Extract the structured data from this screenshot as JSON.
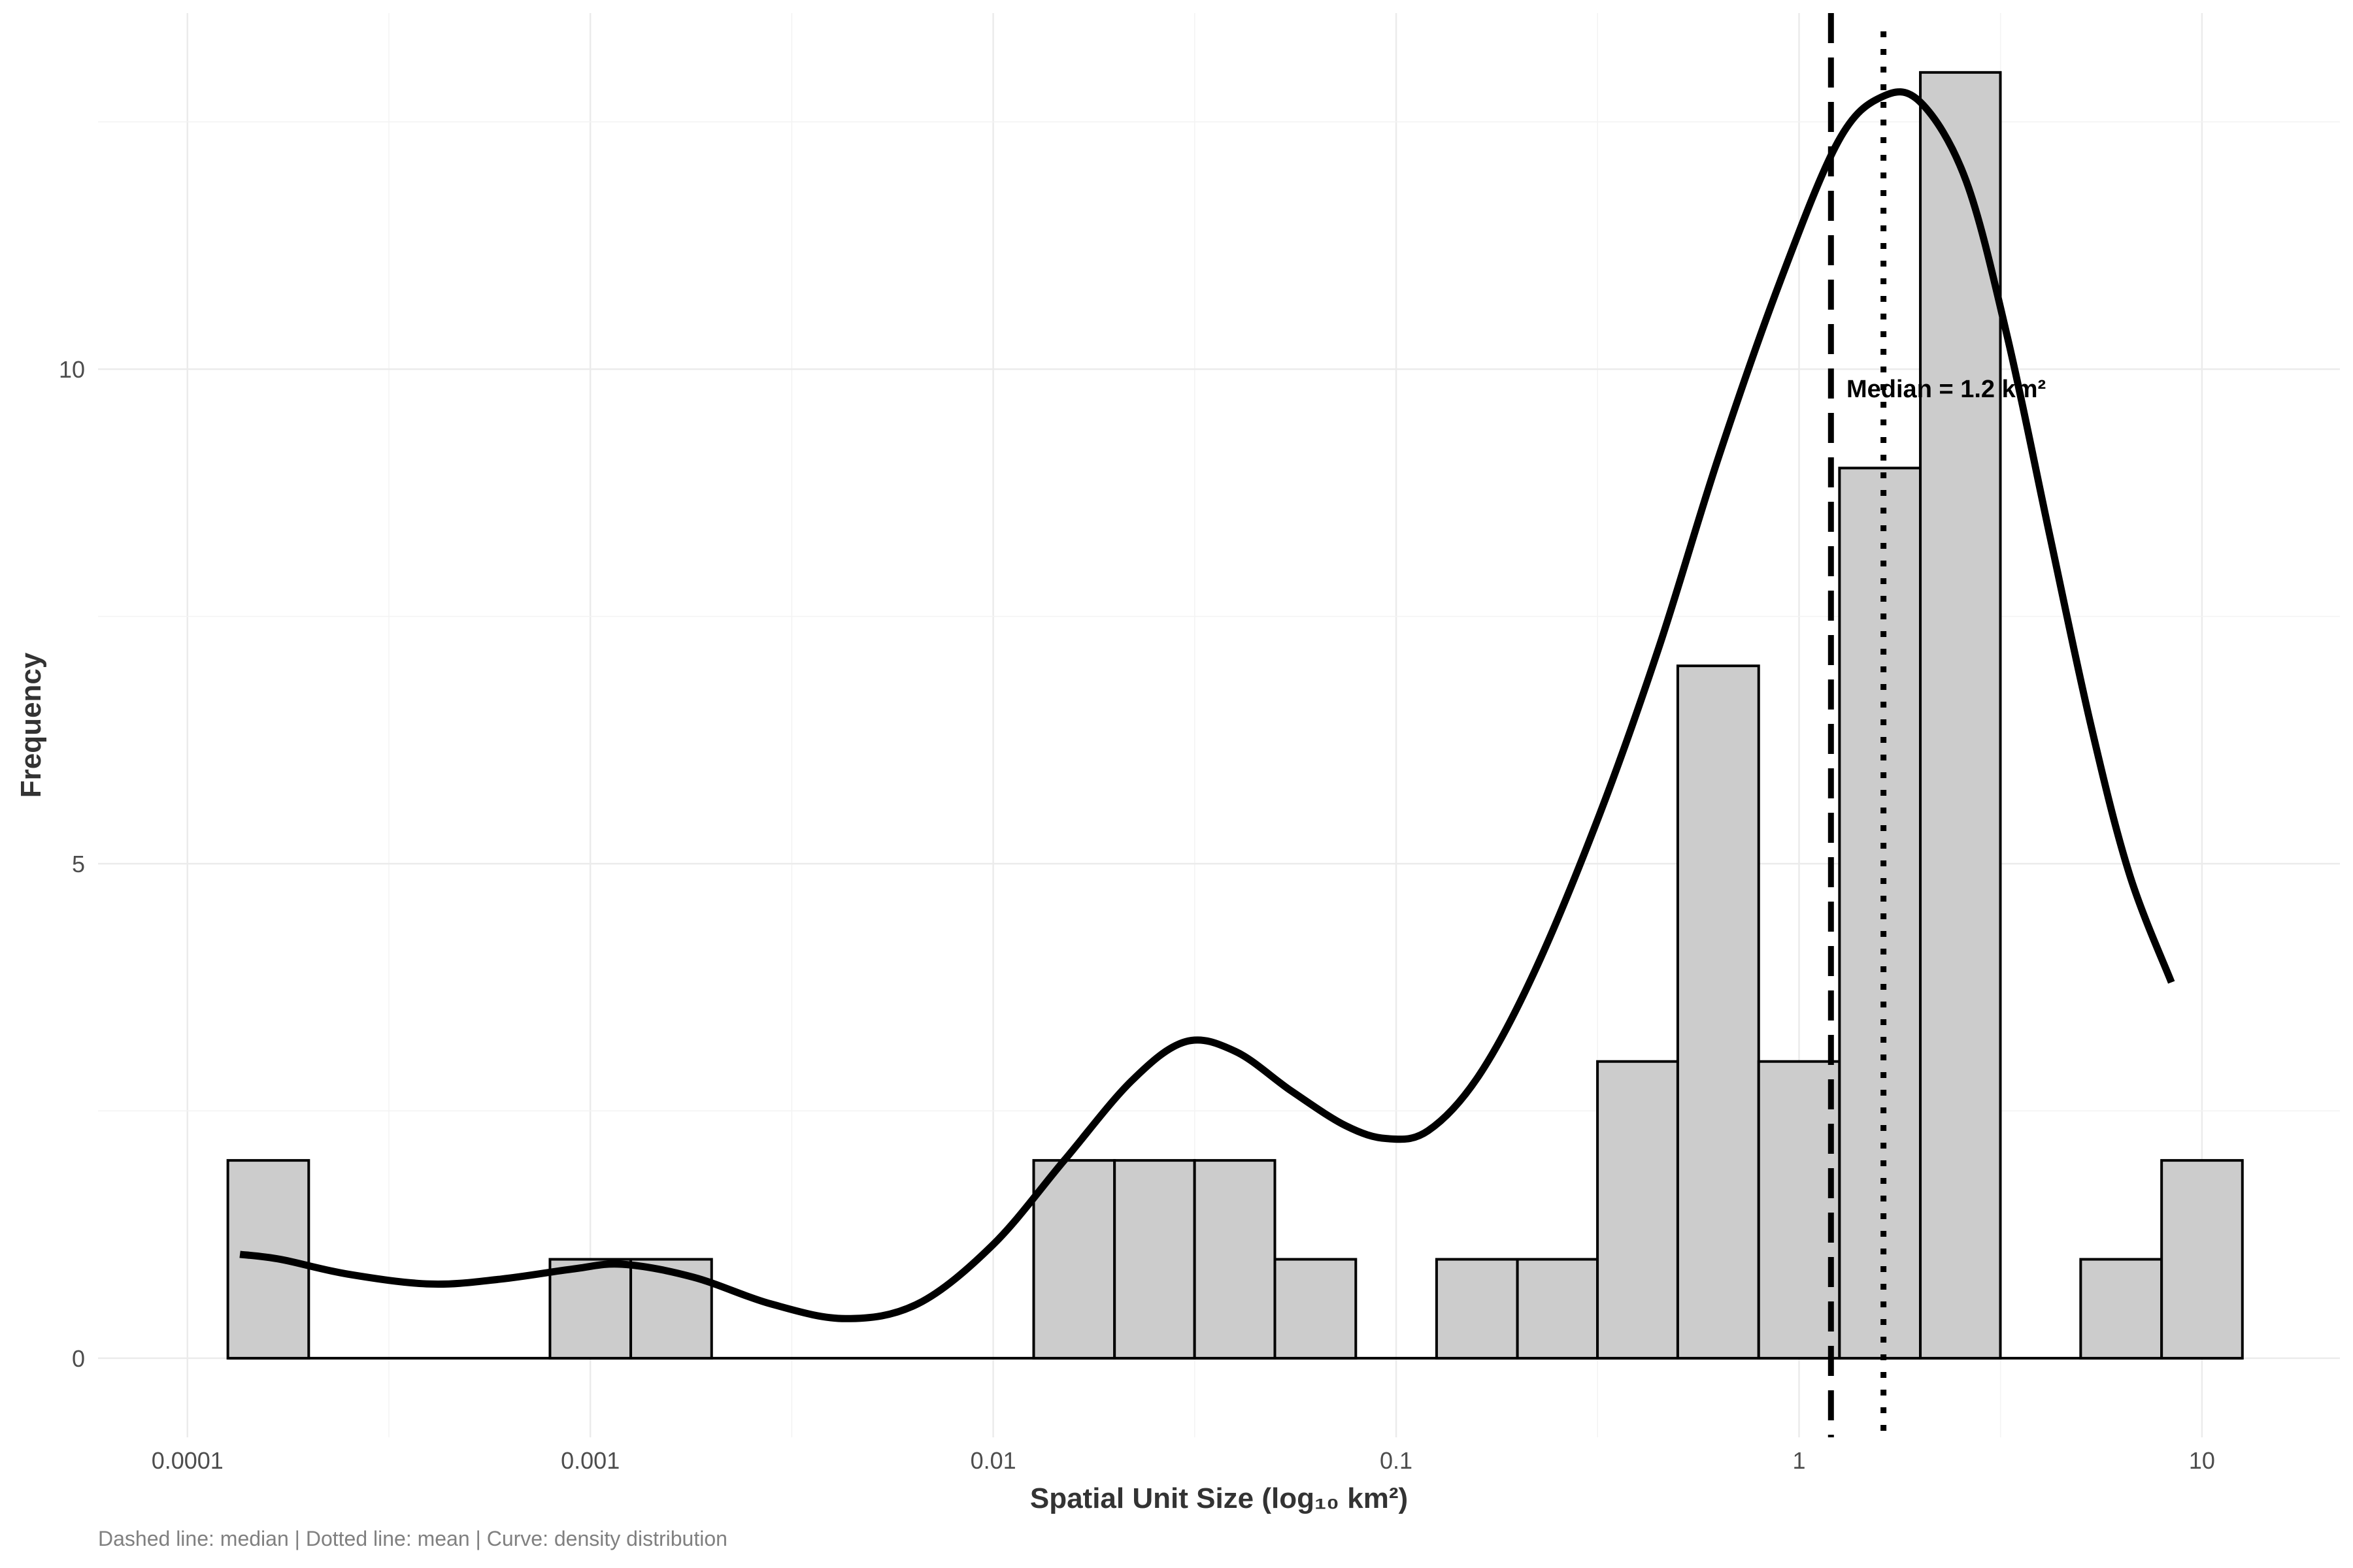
{
  "chart_data": {
    "type": "bar",
    "xlabel": "Spatial Unit Size (log₁₀ km²)",
    "ylabel": "Frequency",
    "caption": "Dashed line: median | Dotted line: mean | Curve: density distribution",
    "x_scale": "log10",
    "xlim": [
      6e-05,
      22
    ],
    "ylim": [
      -0.8,
      13.6
    ],
    "x_ticks": [
      {
        "value": 0.0001,
        "label": "0.0001"
      },
      {
        "value": 0.001,
        "label": "0.001"
      },
      {
        "value": 0.01,
        "label": "0.01"
      },
      {
        "value": 0.1,
        "label": "0.1"
      },
      {
        "value": 1,
        "label": "1"
      },
      {
        "value": 10,
        "label": "10"
      }
    ],
    "y_ticks": [
      {
        "value": 0,
        "label": "0"
      },
      {
        "value": 5,
        "label": "5"
      },
      {
        "value": 10,
        "label": "10"
      }
    ],
    "grid": true,
    "bins": [
      {
        "x0": 0.000126,
        "x1": 0.0002,
        "count": 2
      },
      {
        "x0": 0.0002,
        "x1": 0.000316,
        "count": 0
      },
      {
        "x0": 0.000316,
        "x1": 0.0005,
        "count": 0
      },
      {
        "x0": 0.0005,
        "x1": 0.000794,
        "count": 0
      },
      {
        "x0": 0.000794,
        "x1": 0.00126,
        "count": 1
      },
      {
        "x0": 0.00126,
        "x1": 0.002,
        "count": 1
      },
      {
        "x0": 0.002,
        "x1": 0.00316,
        "count": 0
      },
      {
        "x0": 0.00316,
        "x1": 0.005,
        "count": 0
      },
      {
        "x0": 0.005,
        "x1": 0.00794,
        "count": 0
      },
      {
        "x0": 0.00794,
        "x1": 0.0126,
        "count": 0
      },
      {
        "x0": 0.0126,
        "x1": 0.02,
        "count": 2
      },
      {
        "x0": 0.02,
        "x1": 0.0316,
        "count": 2
      },
      {
        "x0": 0.0316,
        "x1": 0.05,
        "count": 2
      },
      {
        "x0": 0.05,
        "x1": 0.0794,
        "count": 1
      },
      {
        "x0": 0.0794,
        "x1": 0.126,
        "count": 0
      },
      {
        "x0": 0.126,
        "x1": 0.2,
        "count": 1
      },
      {
        "x0": 0.2,
        "x1": 0.316,
        "count": 1
      },
      {
        "x0": 0.316,
        "x1": 0.5,
        "count": 3
      },
      {
        "x0": 0.5,
        "x1": 0.794,
        "count": 7
      },
      {
        "x0": 0.794,
        "x1": 1.26,
        "count": 3
      },
      {
        "x0": 1.26,
        "x1": 2,
        "count": 9
      },
      {
        "x0": 2,
        "x1": 3.16,
        "count": 13
      },
      {
        "x0": 3.16,
        "x1": 5,
        "count": 0
      },
      {
        "x0": 5,
        "x1": 7.94,
        "count": 1
      },
      {
        "x0": 7.94,
        "x1": 12.6,
        "count": 2
      }
    ],
    "bar_fill": "#cccccc",
    "bar_stroke": "#000000",
    "median": {
      "value": 1.2,
      "label": "Median = 1.2 km²",
      "style": "dashed"
    },
    "mean": {
      "value": 1.62,
      "style": "dotted"
    },
    "density_curve": [
      [
        0.000135,
        1.05
      ],
      [
        0.00017,
        1.0
      ],
      [
        0.00025,
        0.85
      ],
      [
        0.0004,
        0.75
      ],
      [
        0.0006,
        0.8
      ],
      [
        0.0009,
        0.9
      ],
      [
        0.0012,
        0.95
      ],
      [
        0.0018,
        0.82
      ],
      [
        0.0028,
        0.55
      ],
      [
        0.0043,
        0.4
      ],
      [
        0.0065,
        0.55
      ],
      [
        0.01,
        1.15
      ],
      [
        0.015,
        2.0
      ],
      [
        0.022,
        2.8
      ],
      [
        0.03,
        3.2
      ],
      [
        0.04,
        3.1
      ],
      [
        0.055,
        2.7
      ],
      [
        0.075,
        2.35
      ],
      [
        0.095,
        2.22
      ],
      [
        0.12,
        2.3
      ],
      [
        0.16,
        2.85
      ],
      [
        0.22,
        3.9
      ],
      [
        0.32,
        5.5
      ],
      [
        0.45,
        7.2
      ],
      [
        0.63,
        9.1
      ],
      [
        0.9,
        10.9
      ],
      [
        1.25,
        12.3
      ],
      [
        1.6,
        12.75
      ],
      [
        2.0,
        12.7
      ],
      [
        2.6,
        11.9
      ],
      [
        3.3,
        10.3
      ],
      [
        4.2,
        8.3
      ],
      [
        5.3,
        6.4
      ],
      [
        6.6,
        4.9
      ],
      [
        8.4,
        3.8
      ]
    ]
  }
}
